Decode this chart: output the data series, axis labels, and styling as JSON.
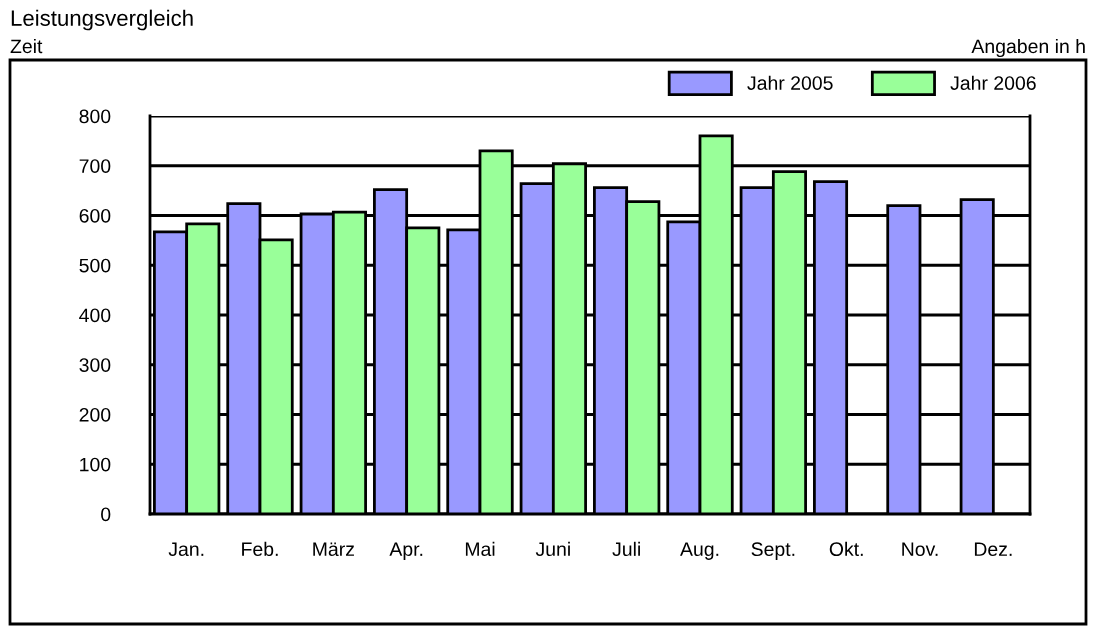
{
  "chart_data": {
    "type": "bar",
    "title": "Leistungsvergleich",
    "ylabel": "Zeit",
    "annotations": [
      "Angaben in h"
    ],
    "categories": [
      "Jan.",
      "Feb.",
      "März",
      "Apr.",
      "Mai",
      "Juni",
      "Juli",
      "Aug.",
      "Sept.",
      "Okt.",
      "Nov.",
      "Dez."
    ],
    "series": [
      {
        "name": "Jahr 2005",
        "color": "#9999ff",
        "values": [
          567,
          624,
          603,
          652,
          571,
          664,
          656,
          587,
          656,
          668,
          620,
          632
        ]
      },
      {
        "name": "Jahr 2006",
        "color": "#99ff99",
        "values": [
          583,
          551,
          607,
          575,
          730,
          704,
          628,
          760,
          688,
          null,
          null,
          null
        ]
      }
    ],
    "ylim": [
      0,
      800
    ],
    "yticks": [
      0,
      100,
      200,
      300,
      400,
      500,
      600,
      700,
      800
    ],
    "grid": "y",
    "legend": "top right"
  }
}
